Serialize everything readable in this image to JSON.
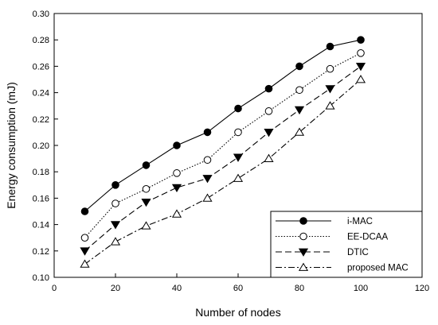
{
  "chart_data": {
    "type": "line",
    "title": "",
    "xlabel": "Number of nodes",
    "ylabel": "Energy consumption (mJ)",
    "xlim": [
      0,
      120
    ],
    "ylim": [
      0.1,
      0.3
    ],
    "xticks": [
      "0",
      "20",
      "40",
      "60",
      "80",
      "100",
      "120"
    ],
    "yticks": [
      "0.10",
      "0.12",
      "0.14",
      "0.16",
      "0.18",
      "0.20",
      "0.22",
      "0.24",
      "0.26",
      "0.28",
      "0.30"
    ],
    "grid": false,
    "legend_position": "bottom-right",
    "x": [
      10,
      20,
      30,
      40,
      50,
      60,
      70,
      80,
      90,
      100
    ],
    "series": [
      {
        "name": "i-MAC",
        "line_style": "solid",
        "marker": "filled-circle",
        "values": [
          0.15,
          0.17,
          0.185,
          0.2,
          0.21,
          0.228,
          0.243,
          0.26,
          0.275,
          0.28
        ]
      },
      {
        "name": "EE-DCAA",
        "line_style": "dotted",
        "marker": "open-circle",
        "values": [
          0.13,
          0.156,
          0.167,
          0.179,
          0.189,
          0.21,
          0.226,
          0.242,
          0.258,
          0.27
        ]
      },
      {
        "name": "DTIC",
        "line_style": "dashed",
        "marker": "filled-triangle-down",
        "values": [
          0.12,
          0.14,
          0.157,
          0.168,
          0.175,
          0.191,
          0.21,
          0.227,
          0.243,
          0.26
        ]
      },
      {
        "name": "proposed MAC",
        "line_style": "dash-dot",
        "marker": "open-triangle-up",
        "values": [
          0.11,
          0.127,
          0.139,
          0.148,
          0.16,
          0.175,
          0.19,
          0.21,
          0.23,
          0.25
        ]
      }
    ]
  }
}
